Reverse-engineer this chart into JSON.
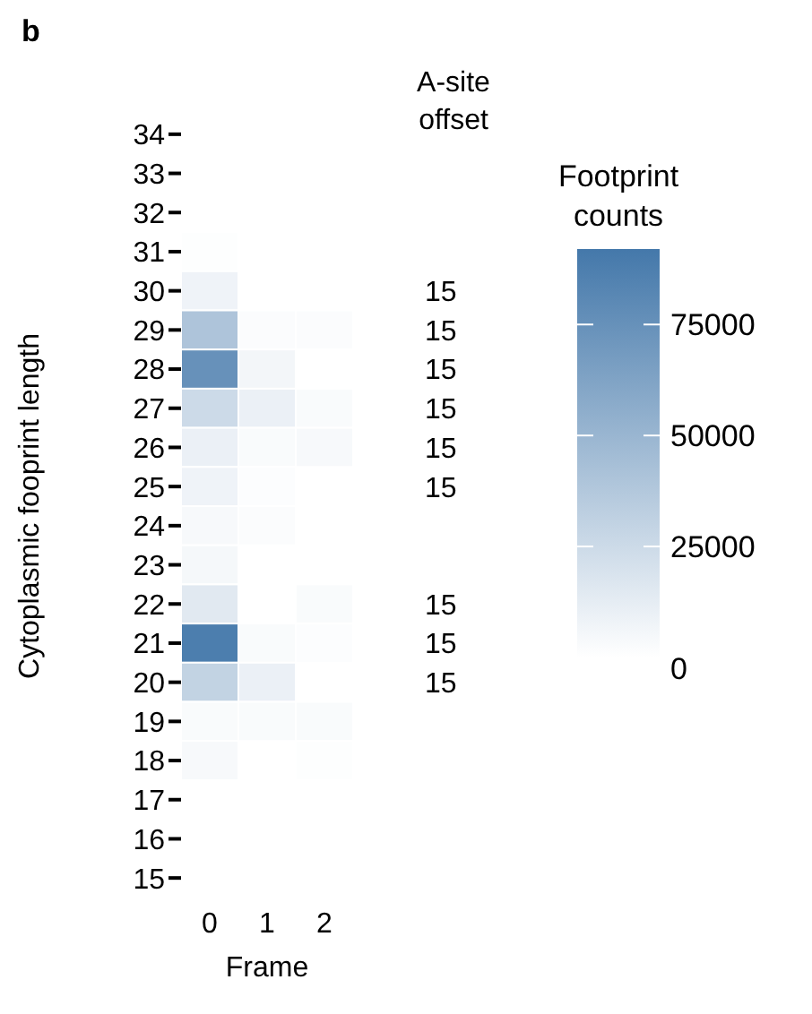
{
  "chart_data": {
    "type": "heatmap",
    "title": "b",
    "xlabel": "Frame",
    "ylabel": "Cytoplasmic fooprint length",
    "y2label": "A-site offset",
    "clabel": "Footprint counts",
    "color": "#4478aa",
    "categories": [
      "0",
      "1",
      "2"
    ],
    "y_categories": [
      "34",
      "33",
      "32",
      "31",
      "30",
      "29",
      "28",
      "27",
      "26",
      "25",
      "24",
      "23",
      "22",
      "21",
      "20",
      "19",
      "18",
      "17",
      "16",
      "15"
    ],
    "y2_categories": [
      null,
      null,
      null,
      null,
      "15",
      "15",
      "15",
      "15",
      "15",
      "15",
      null,
      null,
      "15",
      "15",
      "15",
      null,
      null,
      null,
      null,
      null
    ],
    "cells": [
      [
        null,
        null,
        null
      ],
      [
        null,
        null,
        null
      ],
      [
        null,
        null,
        null
      ],
      [
        1000,
        null,
        null
      ],
      [
        8000,
        null,
        null
      ],
      [
        40000,
        2000,
        2000
      ],
      [
        75000,
        6000,
        null
      ],
      [
        25000,
        10000,
        3000
      ],
      [
        10000,
        3000,
        4000
      ],
      [
        8000,
        1500,
        null
      ],
      [
        4000,
        2000,
        null
      ],
      [
        5000,
        null,
        null
      ],
      [
        15000,
        null,
        3000
      ],
      [
        88000,
        3000,
        1500
      ],
      [
        30000,
        10000,
        null
      ],
      [
        3000,
        3000,
        3000
      ],
      [
        4000,
        null,
        1000
      ],
      [
        null,
        null,
        null
      ],
      [
        null,
        null,
        null
      ],
      [
        null,
        null,
        null
      ]
    ],
    "clim": [
      0,
      92000
    ],
    "cticks": [
      0,
      25000,
      50000,
      75000
    ]
  }
}
